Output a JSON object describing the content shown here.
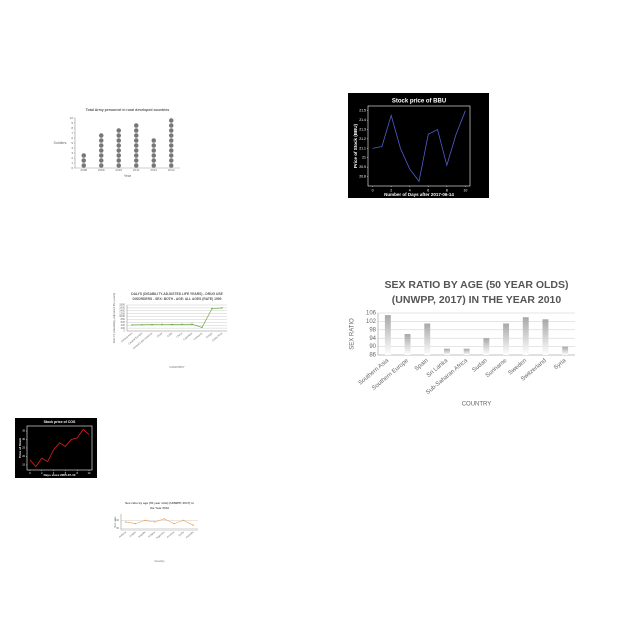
{
  "chart_data": [
    {
      "type": "pictograph",
      "title": "Total Army personnel in rural developed countries",
      "categories": [
        "2008",
        "2009",
        "2010",
        "2011",
        "2012",
        "2013"
      ],
      "values": [
        3,
        7,
        8,
        9,
        6,
        10
      ],
      "color": "#777777",
      "ylim": [
        0,
        10
      ],
      "yticks": [
        0,
        1,
        2,
        3,
        4,
        5,
        6,
        7,
        8,
        9,
        10
      ],
      "x_label": "Year",
      "y_label": "Soldiers"
    },
    {
      "type": "line",
      "title": "Stock price of BBU",
      "background": "#000000",
      "color": "#4f5fcf",
      "x": [
        0,
        1,
        2,
        3,
        4,
        5,
        6,
        7,
        8,
        9,
        10
      ],
      "values": [
        21.1,
        21.12,
        21.45,
        21.1,
        20.88,
        20.75,
        21.25,
        21.3,
        20.92,
        21.25,
        21.5
      ],
      "xlim": [
        -0.5,
        10.5
      ],
      "xticks": [
        0,
        2,
        4,
        6,
        8,
        10
      ],
      "ylim": [
        20.7,
        21.55
      ],
      "yticks": [
        20.8,
        20.9,
        21.0,
        21.1,
        21.2,
        21.3,
        21.4,
        21.5
      ],
      "x_label": "Number of Days after 2017-06-14",
      "y_label": "Price of Stock (BBU)"
    },
    {
      "type": "line",
      "title": [
        "DALYS (DISABILITY-ADJUSTED LIFE YEARS) - DRUG USE",
        "DISORDERS - SEX: BOTH - AGE: ALL AGES (RATE) 1990"
      ],
      "color": "#5a9a2a",
      "categories": [
        "Central Asia",
        "Central Europe",
        "Central Latin America",
        "Chad",
        "Chile",
        "China",
        "Colombia",
        "Comoros",
        "Congo",
        "Costa Rica"
      ],
      "values": [
        420,
        430,
        440,
        450,
        445,
        460,
        470,
        250,
        1550,
        1600
      ],
      "ylim": [
        0,
        1800
      ],
      "yticks": [
        0,
        200,
        400,
        600,
        800,
        1000,
        1200,
        1400,
        1600,
        1800
      ],
      "grid": true,
      "x_label": "COUNTRY",
      "y_label": "DALYs (disability-adjusted life years)"
    },
    {
      "type": "bar",
      "title": [
        "SEX RATIO BY AGE (50 YEAR OLDS)",
        "(UNWPP, 2017) IN THE YEAR 2010"
      ],
      "color": "#a8a8a8",
      "categories": [
        "Southern Asia",
        "Southern Europe",
        "Spain",
        "Sri Lanka",
        "Sub-Saharan Africa",
        "Sudan",
        "Suriname",
        "Sweden",
        "Switzerland",
        "Syria"
      ],
      "values": [
        105,
        96,
        101,
        89,
        89,
        94,
        101,
        104,
        103,
        90
      ],
      "ylim": [
        86,
        106
      ],
      "yticks": [
        86,
        90,
        94,
        98,
        102,
        106
      ],
      "grid": true,
      "x_label": "COUNTRY",
      "y_label": "SEX RATIO"
    },
    {
      "type": "line",
      "title": "Stock price of COS",
      "background": "#000000",
      "color": "#e02020",
      "x": [
        0,
        1,
        2,
        3,
        4,
        5,
        6,
        7,
        8,
        9,
        10
      ],
      "values": [
        18,
        14,
        19,
        17,
        24,
        28,
        26,
        30,
        31,
        36,
        33
      ],
      "xlim": [
        -0.5,
        10.5
      ],
      "xticks": [
        0,
        2,
        4,
        6,
        8,
        10
      ],
      "ylim": [
        12,
        38
      ],
      "yticks": [
        15,
        20,
        25,
        30,
        35
      ],
      "x_label": "Days since 2005-07-13",
      "y_label": "Price of Stock"
    },
    {
      "type": "line",
      "title": [
        "Sex ratio by age (50 year olds) (UNWPP, 2017) in",
        "the Year 2010"
      ],
      "color": "#f0a050",
      "categories": [
        "Andorra",
        "Angola",
        "Anguilla",
        "Antigua",
        "Argentina",
        "Armenia",
        "Aruba",
        "Australia"
      ],
      "values": [
        99,
        98,
        100,
        99,
        101,
        98,
        100,
        97
      ],
      "ylim": [
        94,
        104
      ],
      "yticks": [
        95,
        100
      ],
      "grid": true,
      "x_label": "Country",
      "y_label": "Sex ratio"
    }
  ]
}
